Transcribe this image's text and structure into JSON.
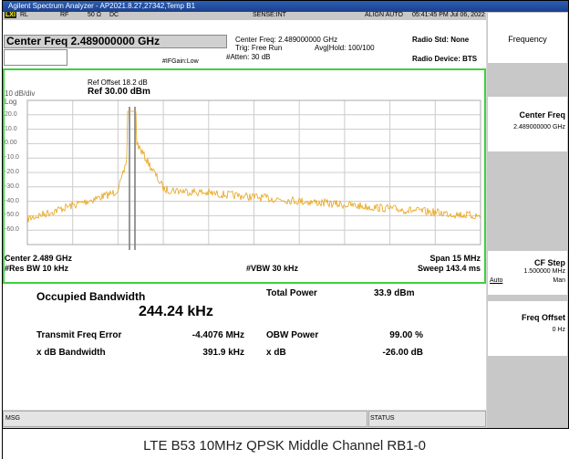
{
  "title_bar": "Agilent Spectrum Analyzer - AP2021.8.27,27342,Temp B1",
  "status_row": {
    "lxi": "LXI",
    "rl": "RL",
    "rf": "RF",
    "impedance": "50 Ω",
    "coupling": "DC",
    "sense": "SENSE:INT",
    "align": "ALIGN AUTO",
    "time": "05:41:45 PM Jul 06, 2022"
  },
  "header": {
    "center_freq": "Center Freq 2.489000000 GHz",
    "center_freq_small": "Center Freq: 2.489000000 GHz",
    "trig": "Trig: Free Run",
    "avg_hold": "Avg|Hold: 100/100",
    "atten": "#Atten: 30 dB",
    "if_gain": "#IFGain:Low",
    "radio_std": "Radio Std: None",
    "radio_device": "Radio Device: BTS"
  },
  "softkeys": {
    "menu": "Frequency",
    "center_freq": {
      "label": "Center Freq",
      "value": "2.489000000 GHz"
    },
    "cf_step": {
      "label": "CF Step",
      "value": "1.500000 MHz",
      "auto": "Auto",
      "man": "Man"
    },
    "freq_offset": {
      "label": "Freq Offset",
      "value": "0 Hz"
    }
  },
  "graph": {
    "ref_offset": "Ref Offset 18.2 dB",
    "ref_level": "Ref 30.00 dBm",
    "scale": "10 dB/div",
    "scale_type": "Log",
    "y_labels": [
      "20.0",
      "10.0",
      "0.00",
      "-10.0",
      "-20.0",
      "-30.0",
      "-40.0",
      "-50.0",
      "-60.0"
    ],
    "center": "Center 2.489 GHz",
    "res_bw": "#Res BW 10 kHz",
    "vbw": "#VBW 30 kHz",
    "span": "Span 15 MHz",
    "sweep": "Sweep 143.4 ms"
  },
  "results": {
    "obw_title": "Occupied Bandwidth",
    "obw_value": "244.24 kHz",
    "total_power_label": "Total Power",
    "total_power_value": "33.9 dBm",
    "tfe_label": "Transmit Freq Error",
    "tfe_value": "-4.4076 MHz",
    "obw_power_label": "OBW Power",
    "obw_power_value": "99.00 %",
    "xdb_bw_label": "x dB Bandwidth",
    "xdb_bw_value": "391.9 kHz",
    "xdb_label": "x dB",
    "xdb_value": "-26.00 dB"
  },
  "status_bar": {
    "msg": "MSG",
    "status": "STATUS"
  },
  "caption": "LTE B53 10MHz QPSK Middle Channel RB1-0"
}
